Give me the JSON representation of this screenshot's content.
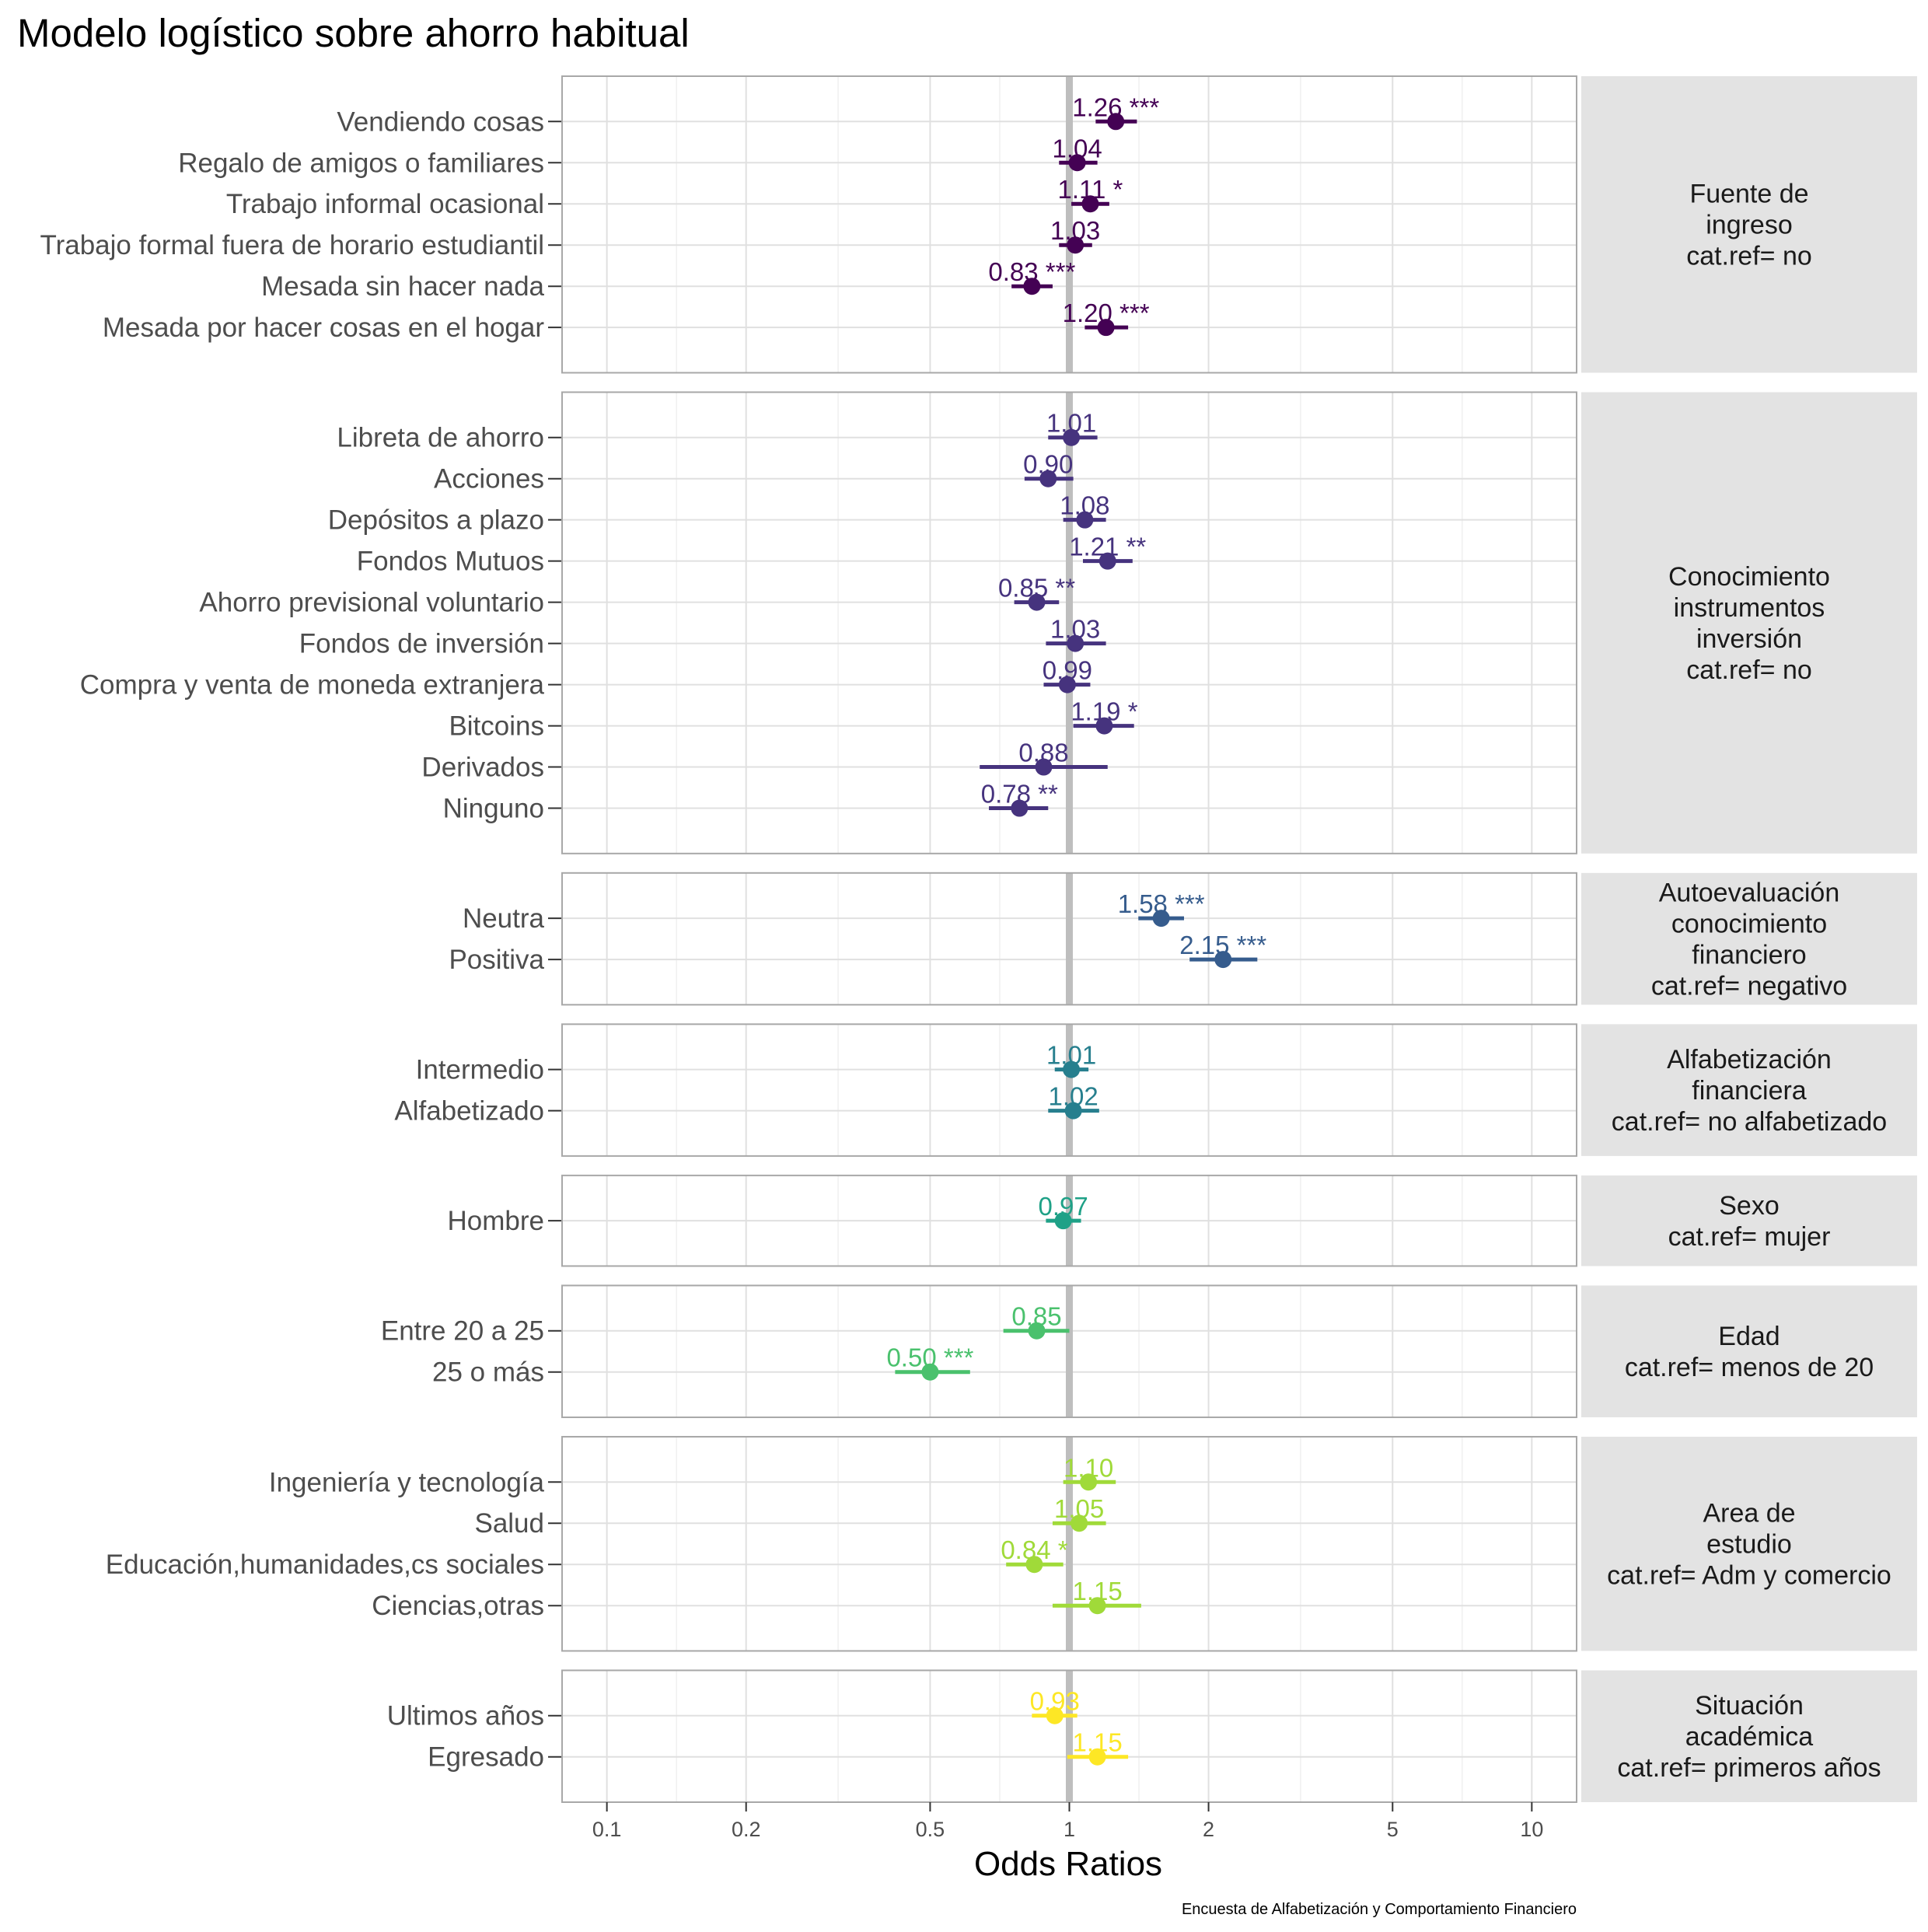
{
  "chart_data": {
    "type": "forest",
    "title": "Modelo logístico sobre ahorro habitual",
    "xlabel": "Odds Ratios",
    "caption": "Encuesta de Alfabetización y Comportamiento Financiero",
    "x_scale": "log10",
    "xlim": [
      0.08,
      12.5
    ],
    "x_ticks": [
      {
        "value": 0.1,
        "label": "0.1"
      },
      {
        "value": 0.2,
        "label": "0.2"
      },
      {
        "value": 0.5,
        "label": "0.5"
      },
      {
        "value": 1,
        "label": "1"
      },
      {
        "value": 2,
        "label": "2"
      },
      {
        "value": 5,
        "label": "5"
      },
      {
        "value": 10,
        "label": "10"
      }
    ],
    "reference_line": 1,
    "grid": true,
    "panels": [
      {
        "strip": [
          "Fuente de",
          "ingreso",
          "cat.ref= no"
        ],
        "color": "#440154",
        "rows": [
          {
            "label": "Vendiendo cosas",
            "or": 1.26,
            "low": 1.14,
            "high": 1.4,
            "text": "1.26 ***"
          },
          {
            "label": "Regalo de amigos o familiares",
            "or": 1.04,
            "low": 0.95,
            "high": 1.15,
            "text": "1.04"
          },
          {
            "label": "Trabajo informal ocasional",
            "or": 1.11,
            "low": 1.01,
            "high": 1.22,
            "text": "1.11 *"
          },
          {
            "label": "Trabajo formal fuera de horario estudiantil",
            "or": 1.03,
            "low": 0.95,
            "high": 1.12,
            "text": "1.03"
          },
          {
            "label": "Mesada sin hacer nada",
            "or": 0.83,
            "low": 0.75,
            "high": 0.92,
            "text": "0.83 ***"
          },
          {
            "label": "Mesada por hacer cosas en el hogar",
            "or": 1.2,
            "low": 1.08,
            "high": 1.34,
            "text": "1.20 ***"
          }
        ]
      },
      {
        "strip": [
          "Conocimiento",
          "instrumentos",
          "inversión",
          "cat.ref= no"
        ],
        "color": "#46337e",
        "rows": [
          {
            "label": "Libreta de ahorro",
            "or": 1.01,
            "low": 0.9,
            "high": 1.15,
            "text": "1.01"
          },
          {
            "label": "Acciones",
            "or": 0.9,
            "low": 0.8,
            "high": 1.02,
            "text": "0.90"
          },
          {
            "label": "Depósitos a plazo",
            "or": 1.08,
            "low": 0.97,
            "high": 1.2,
            "text": "1.08"
          },
          {
            "label": "Fondos Mutuos",
            "or": 1.21,
            "low": 1.07,
            "high": 1.37,
            "text": "1.21 **"
          },
          {
            "label": "Ahorro previsional voluntario",
            "or": 0.85,
            "low": 0.76,
            "high": 0.95,
            "text": "0.85 **"
          },
          {
            "label": "Fondos de inversión",
            "or": 1.03,
            "low": 0.89,
            "high": 1.2,
            "text": "1.03"
          },
          {
            "label": "Compra y venta de moneda extranjera",
            "or": 0.99,
            "low": 0.88,
            "high": 1.11,
            "text": "0.99"
          },
          {
            "label": "Bitcoins",
            "or": 1.19,
            "low": 1.02,
            "high": 1.38,
            "text": "1.19 *"
          },
          {
            "label": "Derivados",
            "or": 0.88,
            "low": 0.64,
            "high": 1.21,
            "text": "0.88"
          },
          {
            "label": "Ninguno",
            "or": 0.78,
            "low": 0.67,
            "high": 0.9,
            "text": "0.78 **"
          }
        ]
      },
      {
        "strip": [
          "Autoevaluación",
          "conocimiento",
          "financiero",
          "cat.ref= negativo"
        ],
        "color": "#365c8d",
        "rows": [
          {
            "label": "Neutra",
            "or": 1.58,
            "low": 1.41,
            "high": 1.77,
            "text": "1.58 ***"
          },
          {
            "label": "Positiva",
            "or": 2.15,
            "low": 1.82,
            "high": 2.55,
            "text": "2.15 ***"
          }
        ]
      },
      {
        "strip": [
          "Alfabetización",
          "financiera",
          "cat.ref= no alfabetizado"
        ],
        "color": "#277f8e",
        "rows": [
          {
            "label": "Intermedio",
            "or": 1.01,
            "low": 0.93,
            "high": 1.1,
            "text": "1.01"
          },
          {
            "label": "Alfabetizado",
            "or": 1.02,
            "low": 0.9,
            "high": 1.16,
            "text": "1.02"
          }
        ]
      },
      {
        "strip": [
          "Sexo",
          "cat.ref= mujer"
        ],
        "color": "#1fa187",
        "rows": [
          {
            "label": "Hombre",
            "or": 0.97,
            "low": 0.89,
            "high": 1.06,
            "text": "0.97"
          }
        ]
      },
      {
        "strip": [
          "Edad",
          "cat.ref= menos de 20"
        ],
        "color": "#4ac16d",
        "rows": [
          {
            "label": "Entre 20 a 25",
            "or": 0.85,
            "low": 0.72,
            "high": 1.0,
            "text": "0.85"
          },
          {
            "label": "25 o más",
            "or": 0.5,
            "low": 0.42,
            "high": 0.61,
            "text": "0.50 ***"
          }
        ]
      },
      {
        "strip": [
          "Area de",
          "estudio",
          "cat.ref= Adm y comercio"
        ],
        "color": "#a0da39",
        "rows": [
          {
            "label": "Ingeniería y tecnología",
            "or": 1.1,
            "low": 0.97,
            "high": 1.26,
            "text": "1.10"
          },
          {
            "label": "Salud",
            "or": 1.05,
            "low": 0.92,
            "high": 1.2,
            "text": "1.05"
          },
          {
            "label": "Educación,humanidades,cs sociales",
            "or": 0.84,
            "low": 0.73,
            "high": 0.97,
            "text": "0.84 *"
          },
          {
            "label": "Ciencias,otras",
            "or": 1.15,
            "low": 0.92,
            "high": 1.43,
            "text": "1.15"
          }
        ]
      },
      {
        "strip": [
          "Situación",
          "académica",
          "cat.ref= primeros años"
        ],
        "color": "#fde725",
        "rows": [
          {
            "label": "Ultimos años",
            "or": 0.93,
            "low": 0.83,
            "high": 1.04,
            "text": "0.93"
          },
          {
            "label": "Egresado",
            "or": 1.15,
            "low": 0.99,
            "high": 1.34,
            "text": "1.15"
          }
        ]
      }
    ]
  }
}
